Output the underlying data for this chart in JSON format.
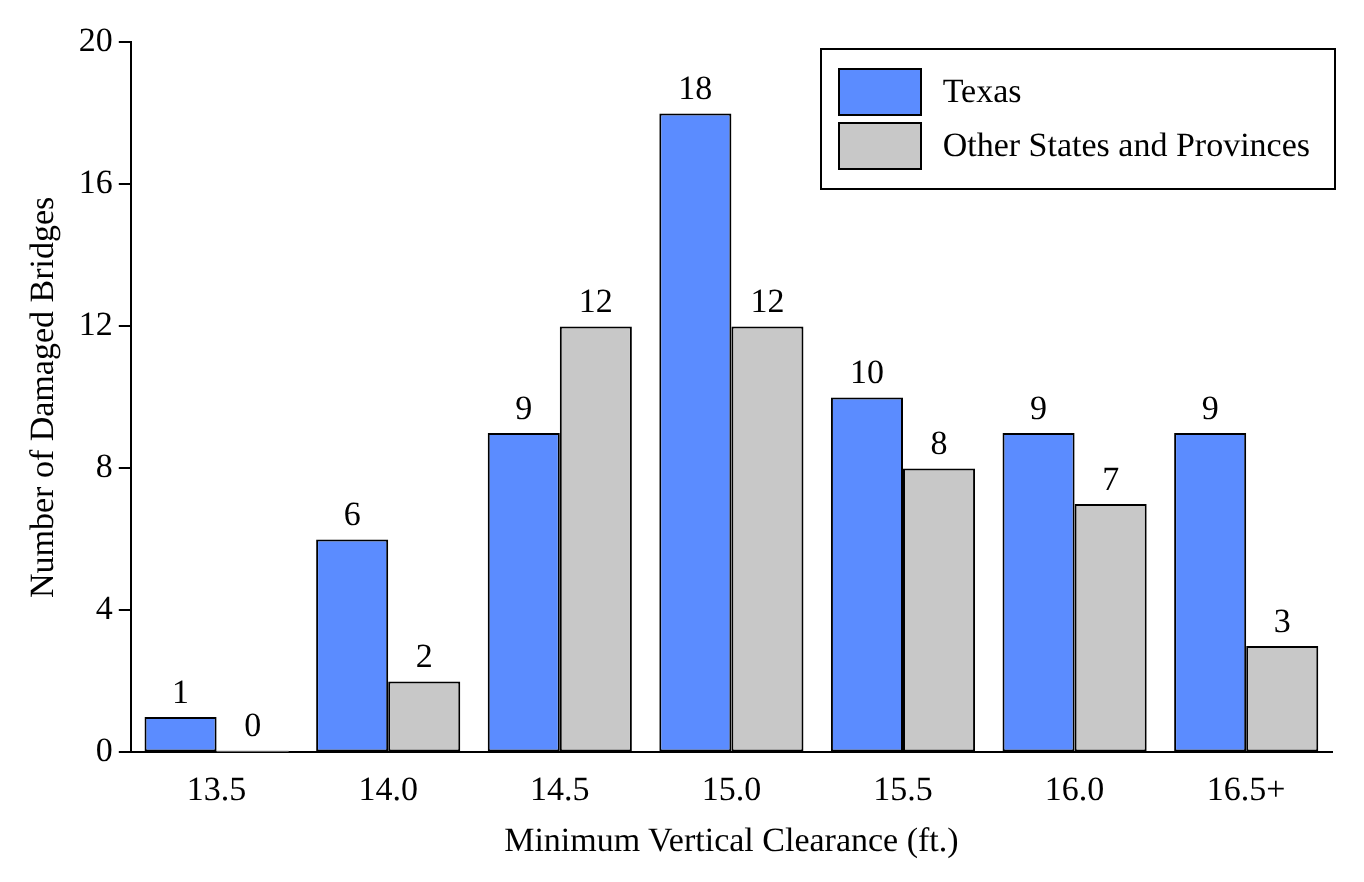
{
  "chart_data": {
    "type": "bar",
    "xlabel": "Minimum Vertical Clearance (ft.)",
    "ylabel": "Number of Damaged Bridges",
    "categories": [
      "13.5",
      "14.0",
      "14.5",
      "15.0",
      "15.5",
      "16.0",
      "16.5+"
    ],
    "series": [
      {
        "name": "Texas",
        "color": "#5b8cff",
        "values": [
          1,
          6,
          9,
          18,
          10,
          9,
          9
        ]
      },
      {
        "name": "Other States and Provinces",
        "color": "#c8c8c8",
        "values": [
          0,
          2,
          12,
          12,
          8,
          7,
          3
        ]
      }
    ],
    "ylim": [
      0,
      20
    ],
    "yticks": [
      0,
      4,
      8,
      12,
      16,
      20
    ],
    "grid": false,
    "legend": "top right",
    "data_labels": true
  }
}
